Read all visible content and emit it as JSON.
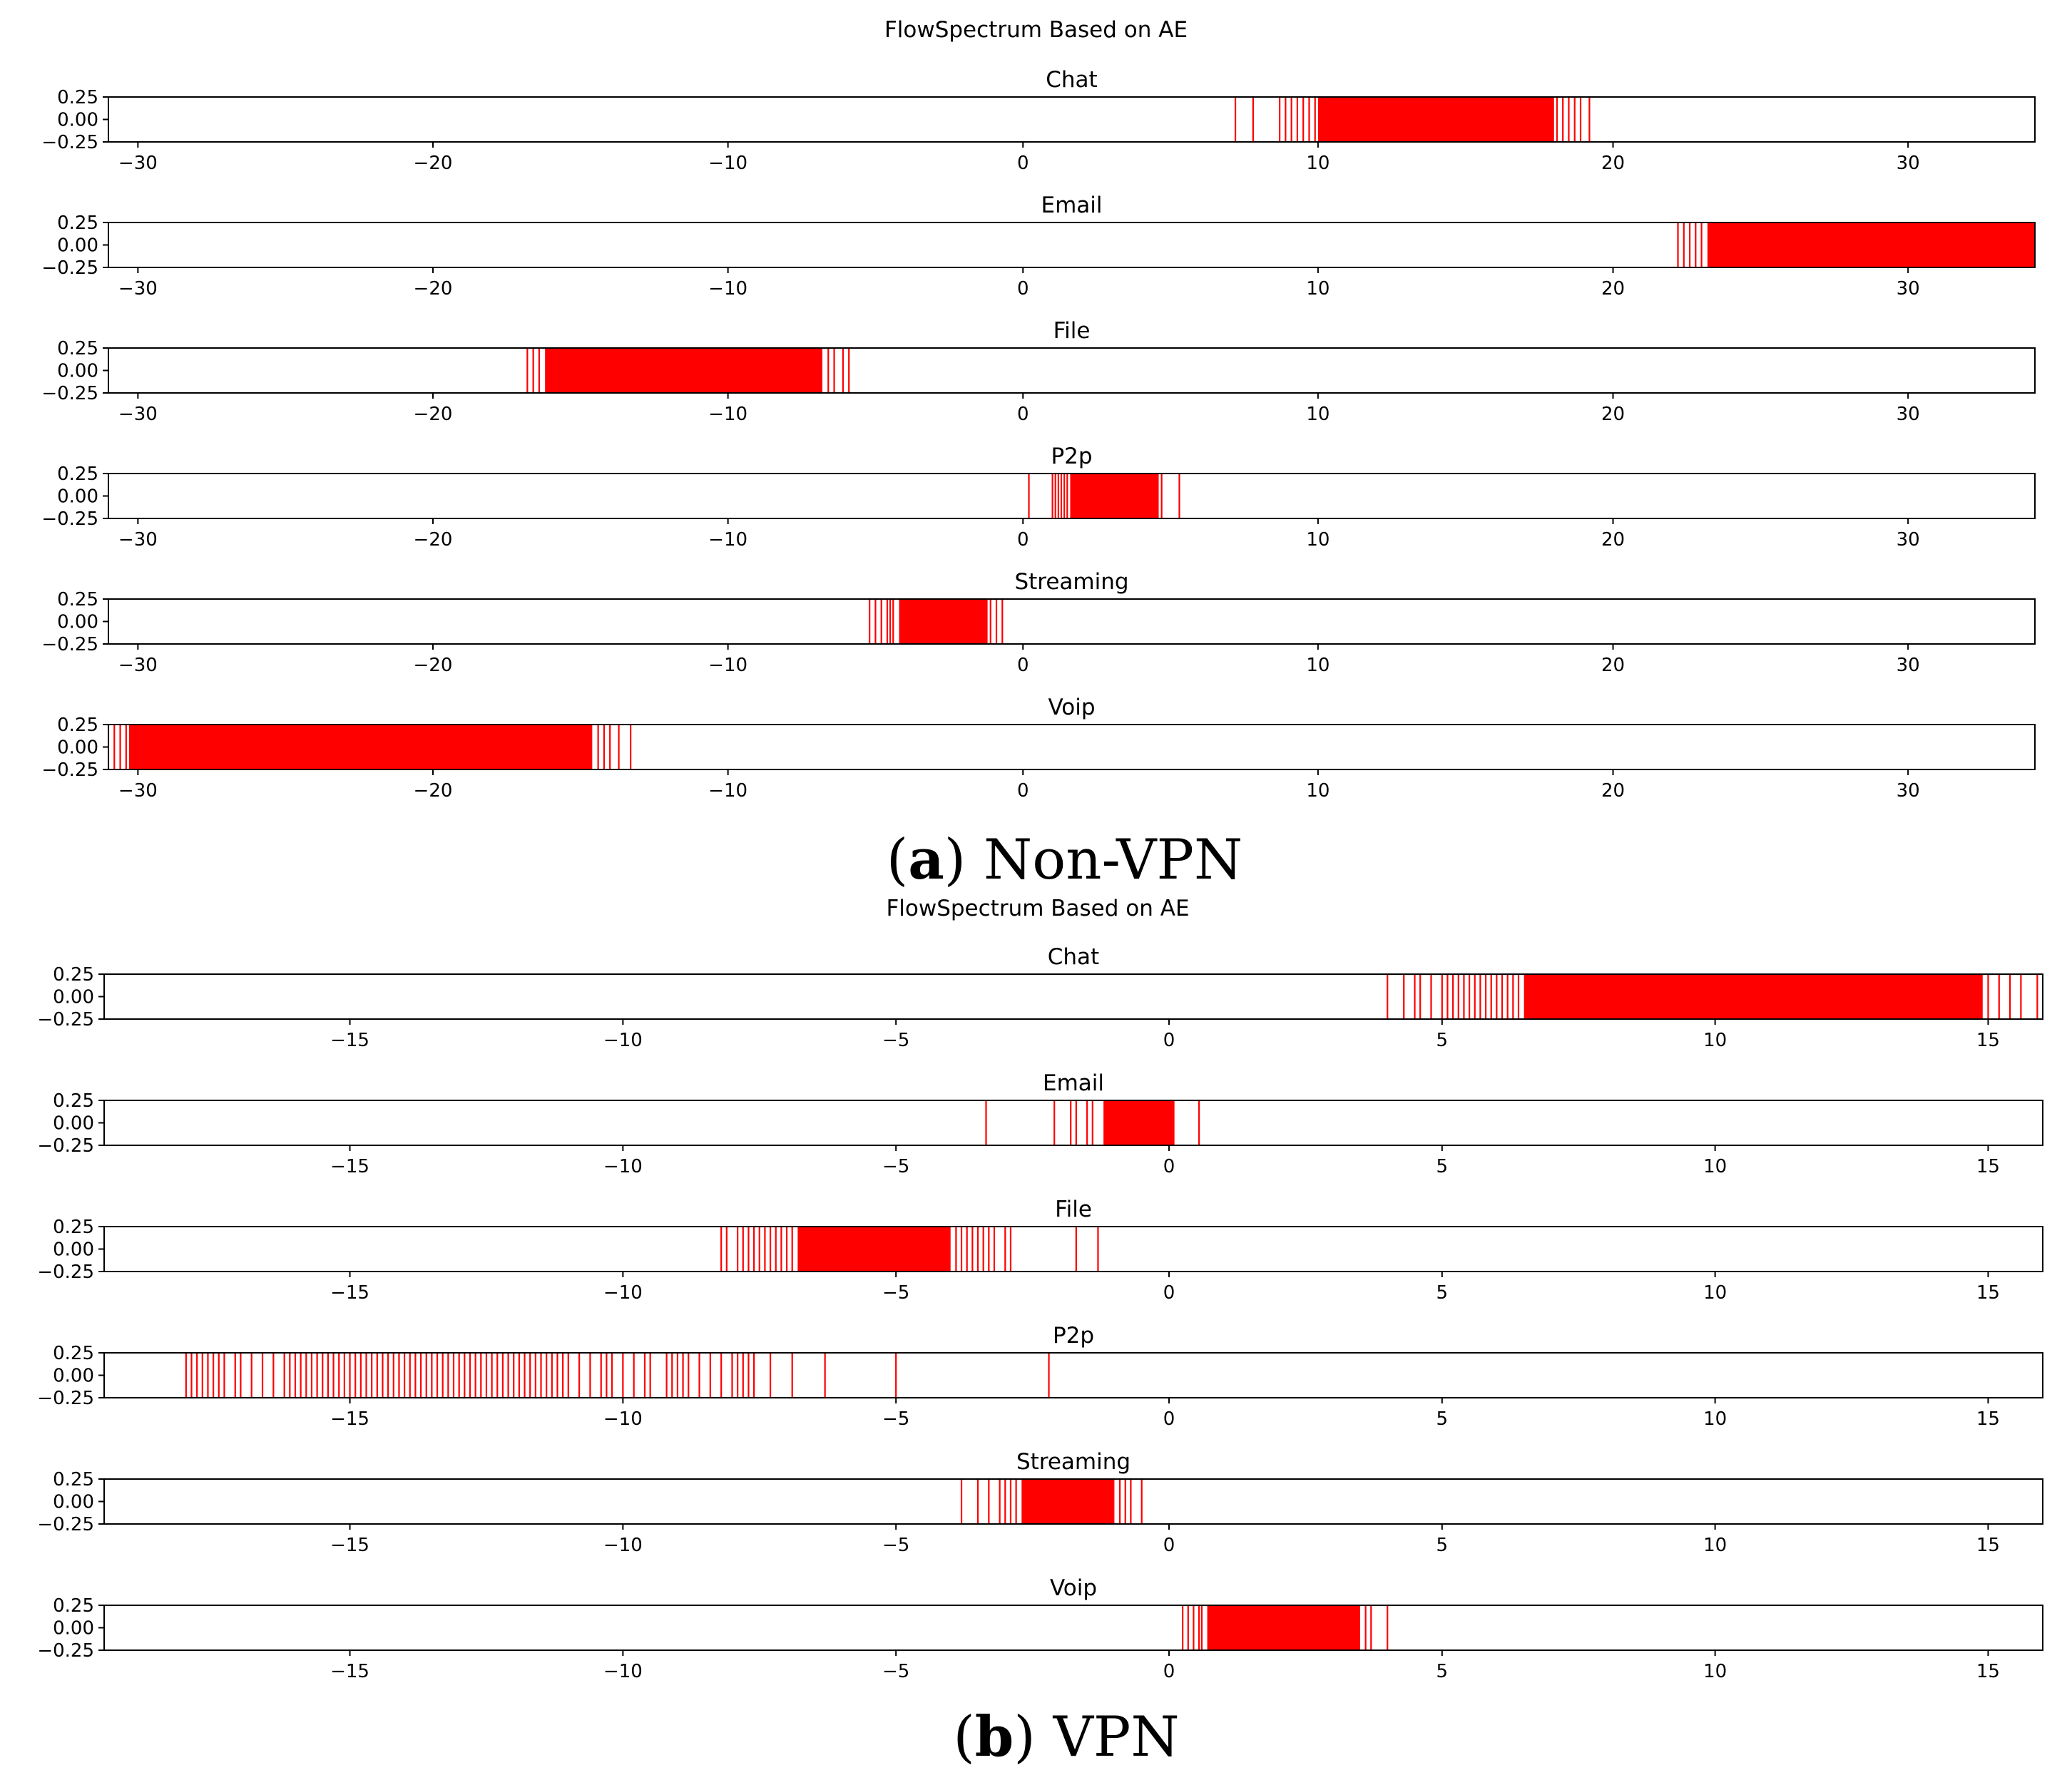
{
  "chart_data": [
    {
      "type": "event-strip",
      "caption": {
        "label": "a",
        "text": " Non-VPN"
      },
      "title": "FlowSpectrum Based on AE",
      "xlim": [
        -31.0,
        34.3
      ],
      "xticks": [
        -30,
        -20,
        -10,
        0,
        10,
        20,
        30
      ],
      "ylim": [
        -0.25,
        0.25
      ],
      "yticks": [
        0.25,
        0.0,
        -0.25
      ],
      "ytick_labels": [
        "0.25",
        "0.00",
        "−0.25"
      ],
      "line_color": "#ff0000",
      "panels": [
        {
          "name": "Chat",
          "ranges": [
            [
              10.0,
              18.0
            ]
          ],
          "events": [
            7.2,
            7.8,
            8.7,
            8.9,
            9.1,
            9.3,
            9.5,
            9.7,
            9.9,
            18.1,
            18.3,
            18.5,
            18.7,
            18.9,
            19.2
          ]
        },
        {
          "name": "Email",
          "ranges": [
            [
              23.2,
              34.3
            ]
          ],
          "events": [
            22.2,
            22.4,
            22.6,
            22.8,
            23.0
          ]
        },
        {
          "name": "File",
          "ranges": [
            [
              -16.2,
              -6.8
            ]
          ],
          "events": [
            -16.8,
            -16.6,
            -16.4,
            -6.6,
            -6.4,
            -6.1,
            -5.9
          ]
        },
        {
          "name": "P2p",
          "ranges": [
            [
              1.6,
              4.6
            ]
          ],
          "events": [
            0.2,
            1.0,
            1.1,
            1.2,
            1.3,
            1.4,
            1.5,
            4.7,
            5.3
          ]
        },
        {
          "name": "Streaming",
          "ranges": [
            [
              -4.2,
              -1.2
            ]
          ],
          "events": [
            -5.2,
            -5.0,
            -4.8,
            -4.6,
            -4.5,
            -4.4,
            -1.1,
            -0.9,
            -0.7
          ]
        },
        {
          "name": "Voip",
          "ranges": [
            [
              -30.3,
              -14.6
            ]
          ],
          "events": [
            -31.0,
            -30.8,
            -30.6,
            -30.4,
            -14.4,
            -14.2,
            -14.0,
            -13.7,
            -13.3
          ]
        }
      ]
    },
    {
      "type": "event-strip",
      "caption": {
        "label": "b",
        "text": " VPN"
      },
      "title": "FlowSpectrum Based on AE",
      "xlim": [
        -19.5,
        16.0
      ],
      "xticks": [
        -15,
        -10,
        -5,
        0,
        5,
        10,
        15
      ],
      "ylim": [
        -0.25,
        0.25
      ],
      "yticks": [
        0.25,
        0.0,
        -0.25
      ],
      "ytick_labels": [
        "0.25",
        "0.00",
        "−0.25"
      ],
      "line_color": "#ff0000",
      "panels": [
        {
          "name": "Chat",
          "ranges": [
            [
              6.5,
              14.9
            ]
          ],
          "events": [
            4.0,
            4.3,
            4.5,
            4.6,
            4.8,
            5.0,
            5.1,
            5.2,
            5.3,
            5.4,
            5.5,
            5.6,
            5.7,
            5.8,
            5.9,
            6.0,
            6.1,
            6.2,
            6.3,
            6.4,
            15.0,
            15.2,
            15.4,
            15.6,
            15.9
          ]
        },
        {
          "name": "Email",
          "ranges": [
            [
              -1.2,
              0.1
            ]
          ],
          "events": [
            -3.35,
            -2.1,
            -1.8,
            -1.7,
            -1.5,
            -1.4,
            0.55
          ]
        },
        {
          "name": "File",
          "ranges": [
            [
              -6.8,
              -4.0
            ]
          ],
          "events": [
            -8.2,
            -8.1,
            -7.9,
            -7.8,
            -7.7,
            -7.6,
            -7.5,
            -7.4,
            -7.3,
            -7.2,
            -7.1,
            -7.0,
            -6.9,
            -3.9,
            -3.8,
            -3.7,
            -3.6,
            -3.5,
            -3.4,
            -3.3,
            -3.2,
            -3.0,
            -2.9,
            -1.7,
            -1.3
          ]
        },
        {
          "name": "P2p",
          "ranges": [],
          "events": [
            -18.0,
            -17.9,
            -17.8,
            -17.7,
            -17.6,
            -17.5,
            -17.4,
            -17.3,
            -17.1,
            -17.0,
            -16.8,
            -16.6,
            -16.4,
            -16.2,
            -16.1,
            -16.0,
            -15.9,
            -15.8,
            -15.7,
            -15.6,
            -15.5,
            -15.4,
            -15.3,
            -15.2,
            -15.1,
            -15.0,
            -14.9,
            -14.8,
            -14.7,
            -14.6,
            -14.5,
            -14.4,
            -14.3,
            -14.2,
            -14.1,
            -14.0,
            -13.9,
            -13.8,
            -13.7,
            -13.6,
            -13.5,
            -13.4,
            -13.3,
            -13.2,
            -13.1,
            -13.0,
            -12.9,
            -12.8,
            -12.7,
            -12.6,
            -12.5,
            -12.4,
            -12.3,
            -12.2,
            -12.1,
            -12.0,
            -11.9,
            -11.8,
            -11.7,
            -11.6,
            -11.5,
            -11.4,
            -11.3,
            -11.2,
            -11.1,
            -11.0,
            -10.8,
            -10.6,
            -10.4,
            -10.3,
            -10.2,
            -10.0,
            -9.8,
            -9.6,
            -9.5,
            -9.2,
            -9.1,
            -9.0,
            -8.9,
            -8.8,
            -8.6,
            -8.4,
            -8.2,
            -8.0,
            -7.9,
            -7.8,
            -7.7,
            -7.6,
            -7.3,
            -6.9,
            -6.3,
            -5.0,
            -2.2
          ]
        },
        {
          "name": "Streaming",
          "ranges": [
            [
              -2.7,
              -1.0
            ]
          ],
          "events": [
            -3.8,
            -3.5,
            -3.3,
            -3.1,
            -3.0,
            -2.9,
            -2.8,
            -0.9,
            -0.8,
            -0.7,
            -0.5
          ]
        },
        {
          "name": "Voip",
          "ranges": [
            [
              0.7,
              3.5
            ]
          ],
          "events": [
            0.25,
            0.35,
            0.45,
            0.55,
            0.6,
            3.6,
            3.7,
            4.0
          ]
        }
      ]
    }
  ]
}
